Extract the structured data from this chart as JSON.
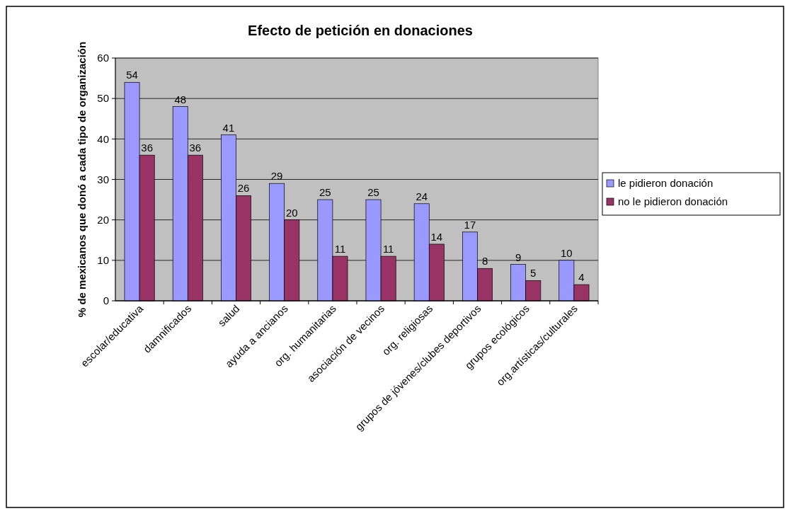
{
  "chart_data": {
    "type": "bar",
    "title": "Efecto de petición en donaciones",
    "ylabel": "% de mexicanos que donó a cada tipo de organización",
    "categories": [
      "escolar/educativa",
      "damnificados",
      "salud",
      "ayuda a ancianos",
      "org. humanitarias",
      "asociación de vecinos",
      "org. religiosas",
      "grupos de jóvenes/clubes deportivos",
      "grupos ecológicos",
      "org.artísticas/culturales"
    ],
    "series": [
      {
        "name": "le pidieron donación",
        "color": "#9999ff",
        "values": [
          54,
          48,
          41,
          29,
          25,
          25,
          24,
          17,
          9,
          10
        ]
      },
      {
        "name": "no le pidieron donación",
        "color": "#993366",
        "values": [
          36,
          36,
          26,
          20,
          11,
          11,
          14,
          8,
          5,
          4
        ]
      }
    ],
    "ylim": [
      0,
      60
    ],
    "yticks": [
      0,
      10,
      20,
      30,
      40,
      50,
      60
    ],
    "grid": "y",
    "legend": "right",
    "data_labels": true
  }
}
